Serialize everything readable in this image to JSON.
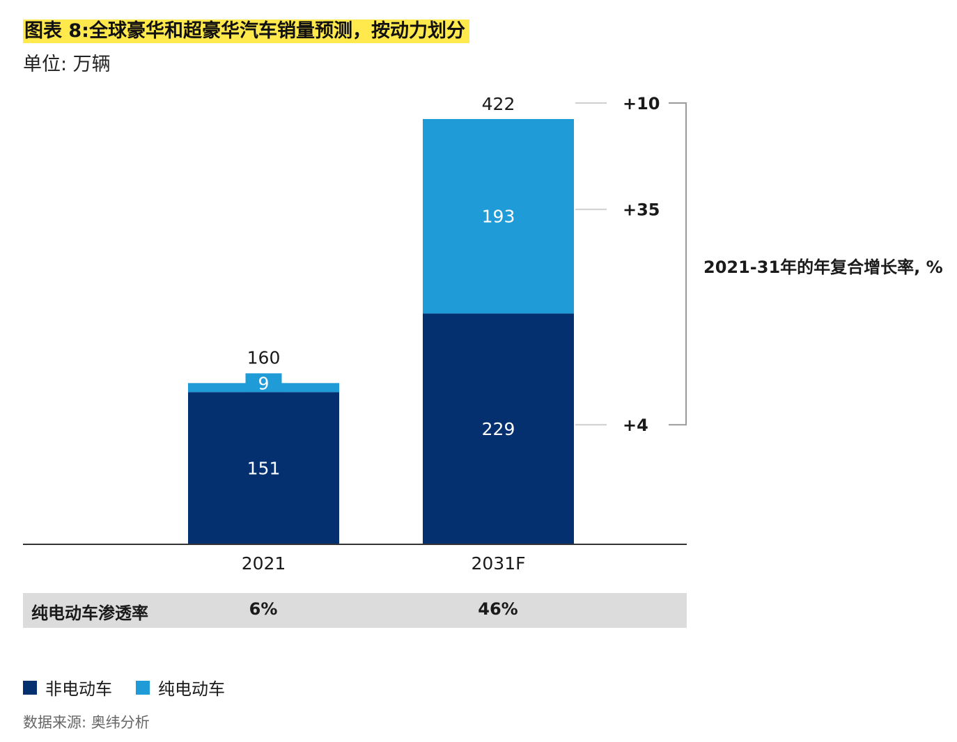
{
  "title": "图表 8:全球豪华和超豪华汽车销量预测，按动力划分",
  "subtitle": "单位: 万辆",
  "colors": {
    "non_ev": "#05306f",
    "ev": "#1f9bd7",
    "highlight": "#ffe94d",
    "table_bg": "#dcdcdc"
  },
  "chart_data": {
    "type": "bar",
    "stacked": true,
    "categories": [
      "2021",
      "2031F"
    ],
    "series": [
      {
        "name": "非电动车",
        "values": [
          151,
          229
        ]
      },
      {
        "name": "纯电动车",
        "values": [
          9,
          193
        ]
      }
    ],
    "totals": [
      160,
      422
    ],
    "value_labels": {
      "non_ev": [
        "151",
        "229"
      ],
      "ev": [
        "9",
        "193"
      ],
      "totals": [
        "160",
        "422"
      ]
    },
    "cagr": {
      "title": "2021-31年的年复合增长率, %",
      "total": "+10",
      "ev": "+35",
      "non_ev": "+4"
    },
    "ylim": [
      0,
      440
    ]
  },
  "penetration": {
    "label": "纯电动车渗透率",
    "values": [
      "6%",
      "46%"
    ]
  },
  "legend": [
    {
      "label": "非电动车",
      "color": "#05306f"
    },
    {
      "label": "纯电动车",
      "color": "#1f9bd7"
    }
  ],
  "source": "数据来源: 奥纬分析"
}
